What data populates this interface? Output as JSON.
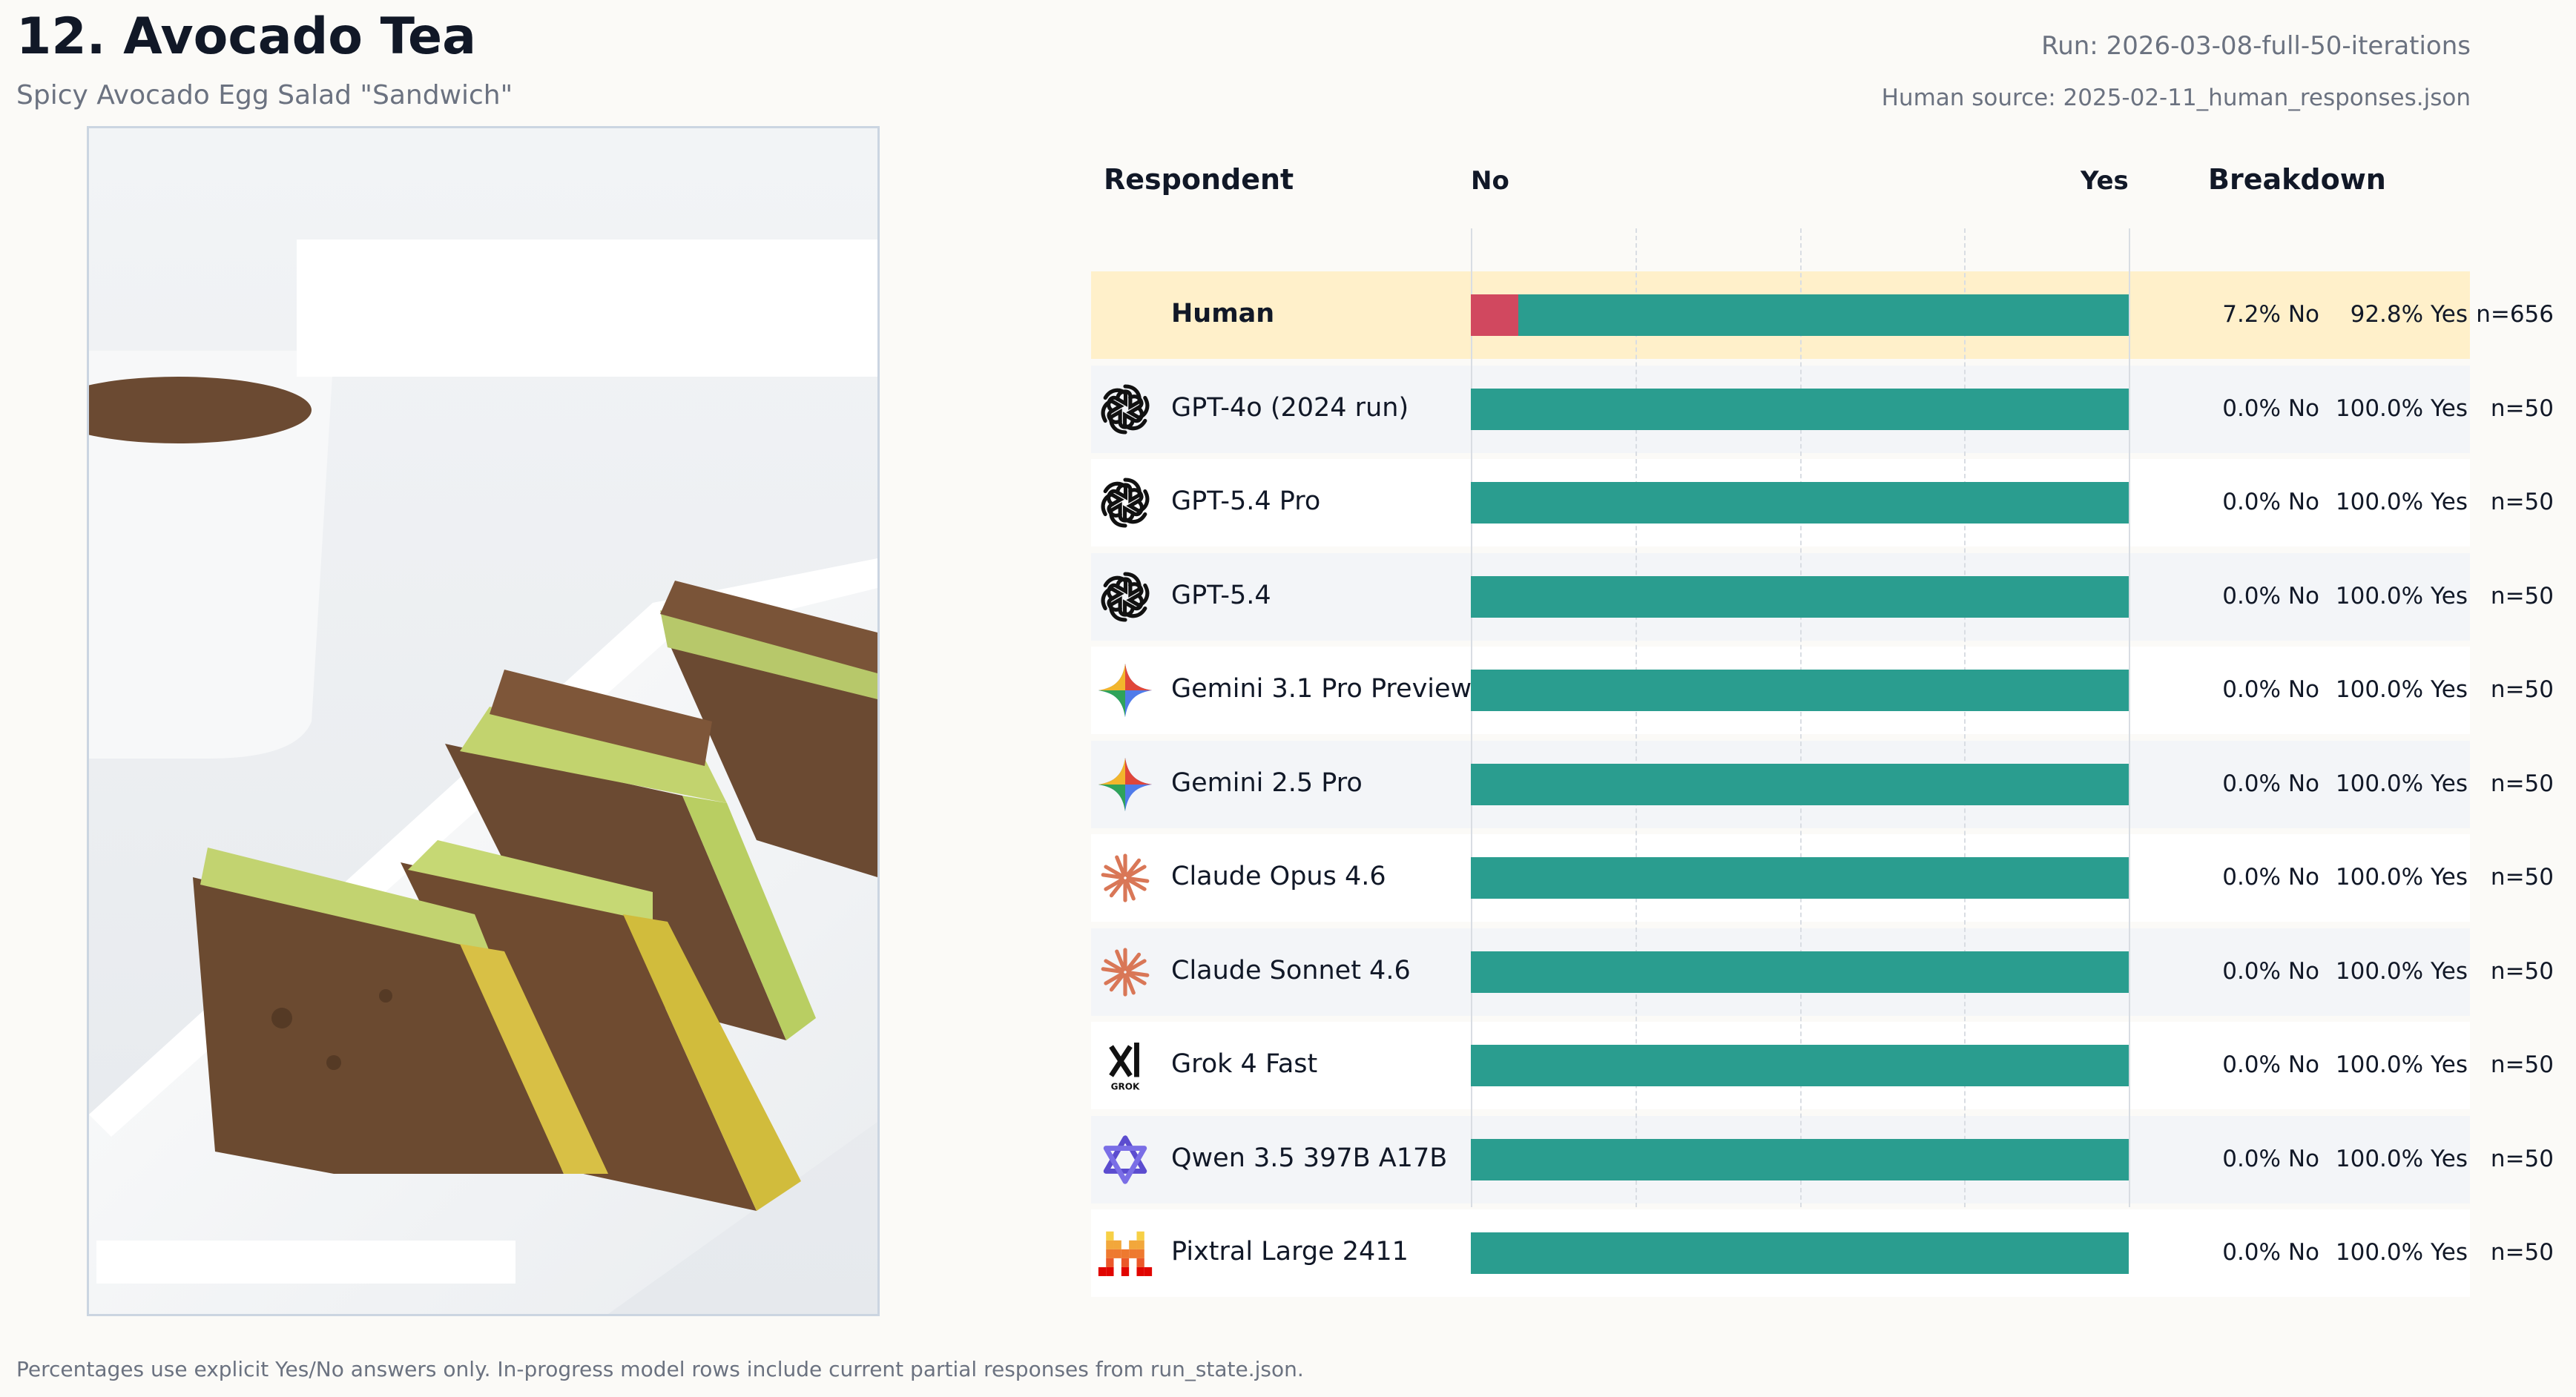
{
  "header": {
    "title": "12. Avocado Tea",
    "subtitle": "Spicy Avocado Egg Salad \"Sandwich\"",
    "run": "Run: 2026-03-08-full-50-iterations",
    "human_source": "Human source: 2025-02-11_human_responses.json"
  },
  "columns": {
    "respondent": "Respondent",
    "no": "No",
    "yes": "Yes",
    "breakdown": "Breakdown"
  },
  "footnote": "Percentages use explicit Yes/No answers only. In-progress model rows include current partial responses from run_state.json.",
  "colors": {
    "no": "#d1485f",
    "yes": "#2a9d8f",
    "human_row": "#fff0ca"
  },
  "chart_data": {
    "type": "bar",
    "orientation": "horizontal",
    "stacked": true,
    "xlim": [
      0,
      100
    ],
    "grid": true,
    "categories": [
      "Human",
      "GPT-4o (2024 run)",
      "GPT-5.4 Pro",
      "GPT-5.4",
      "Gemini 3.1 Pro Preview",
      "Gemini 2.5 Pro",
      "Claude Opus 4.6",
      "Claude Sonnet 4.6",
      "Grok 4 Fast",
      "Qwen 3.5 397B A17B",
      "Pixtral Large 2411"
    ],
    "series": [
      {
        "name": "No",
        "values": [
          7.2,
          0,
          0,
          0,
          0,
          0,
          0,
          0,
          0,
          0,
          0
        ]
      },
      {
        "name": "Yes",
        "values": [
          92.8,
          100,
          100,
          100,
          100,
          100,
          100,
          100,
          100,
          100,
          100
        ]
      }
    ],
    "rows": [
      {
        "name": "Human",
        "logo": "none",
        "no_label": "7.2% No",
        "yes_label": "92.8% Yes",
        "n_label": "n=656"
      },
      {
        "name": "GPT-4o (2024 run)",
        "logo": "openai-icon",
        "no_label": "0.0% No",
        "yes_label": "100.0% Yes",
        "n_label": "n=50"
      },
      {
        "name": "GPT-5.4 Pro",
        "logo": "openai-icon",
        "no_label": "0.0% No",
        "yes_label": "100.0% Yes",
        "n_label": "n=50"
      },
      {
        "name": "GPT-5.4",
        "logo": "openai-icon",
        "no_label": "0.0% No",
        "yes_label": "100.0% Yes",
        "n_label": "n=50"
      },
      {
        "name": "Gemini 3.1 Pro Preview",
        "logo": "gemini-icon",
        "no_label": "0.0% No",
        "yes_label": "100.0% Yes",
        "n_label": "n=50"
      },
      {
        "name": "Gemini 2.5 Pro",
        "logo": "gemini-icon",
        "no_label": "0.0% No",
        "yes_label": "100.0% Yes",
        "n_label": "n=50"
      },
      {
        "name": "Claude Opus 4.6",
        "logo": "claude-icon",
        "no_label": "0.0% No",
        "yes_label": "100.0% Yes",
        "n_label": "n=50"
      },
      {
        "name": "Claude Sonnet 4.6",
        "logo": "claude-icon",
        "no_label": "0.0% No",
        "yes_label": "100.0% Yes",
        "n_label": "n=50"
      },
      {
        "name": "Grok 4 Fast",
        "logo": "grok-icon",
        "no_label": "0.0% No",
        "yes_label": "100.0% Yes",
        "n_label": "n=50"
      },
      {
        "name": "Qwen 3.5 397B A17B",
        "logo": "qwen-icon",
        "no_label": "0.0% No",
        "yes_label": "100.0% Yes",
        "n_label": "n=50"
      },
      {
        "name": "Pixtral Large 2411",
        "logo": "mistral-icon",
        "no_label": "0.0% No",
        "yes_label": "100.0% Yes",
        "n_label": "n=50"
      }
    ]
  },
  "logos": {
    "grok_text": "GROK"
  }
}
